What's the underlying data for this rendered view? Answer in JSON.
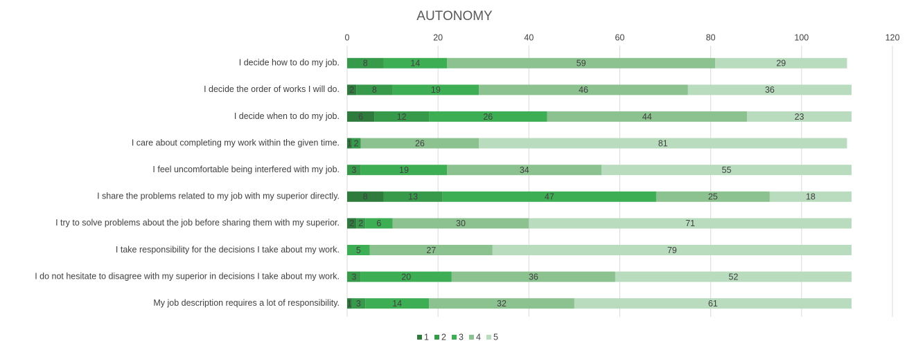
{
  "chart_data": {
    "type": "stacked_barh",
    "title": "AUTONOMY",
    "categories": [
      "I decide how to do my job.",
      "I decide the order of works I will do.",
      "I decide when to do my job.",
      "I care about completing my work within the given time.",
      "I feel uncomfortable being interfered with my job.",
      "I share the problems related to my job with my superior directly.",
      "I try to solve problems about the job before sharing them with my superior.",
      "I take responsibility for the decisions I take about my work.",
      "I do not hesitate to disagree with my superior in decisions I take about my work.",
      "My job description requires a lot of responsibility."
    ],
    "series": [
      {
        "name": "1",
        "color": "#2e7b3d",
        "values": [
          null,
          2,
          6,
          1,
          null,
          8,
          2,
          null,
          null,
          1
        ]
      },
      {
        "name": "2",
        "color": "#379a4b",
        "values": [
          8,
          8,
          12,
          2,
          3,
          13,
          2,
          null,
          3,
          3
        ]
      },
      {
        "name": "3",
        "color": "#3eae54",
        "values": [
          14,
          19,
          26,
          null,
          19,
          47,
          6,
          5,
          20,
          14
        ]
      },
      {
        "name": "4",
        "color": "#8cc290",
        "values": [
          59,
          46,
          44,
          26,
          34,
          25,
          30,
          27,
          36,
          32
        ]
      },
      {
        "name": "5",
        "color": "#b9dbbe",
        "values": [
          29,
          36,
          23,
          81,
          55,
          18,
          71,
          79,
          52,
          61
        ]
      }
    ],
    "xlim": [
      0,
      120
    ],
    "xticks": [
      0,
      20,
      40,
      60,
      80,
      100,
      120
    ],
    "grid": true,
    "legend": "bottom"
  }
}
